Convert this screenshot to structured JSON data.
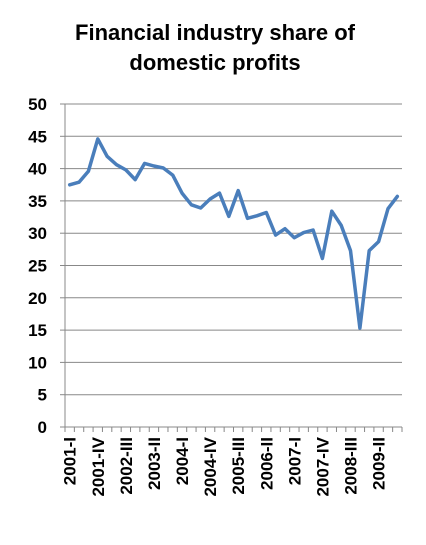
{
  "chart_data": {
    "type": "line",
    "title_line1": "Financial industry share of",
    "title_line2": "domestic profits",
    "xlabel": "",
    "ylabel": "",
    "ylim": [
      0,
      50
    ],
    "yticks": [
      0,
      5,
      10,
      15,
      20,
      25,
      30,
      35,
      40,
      45,
      50
    ],
    "grid": true,
    "legend": "none",
    "line_color": "#4a7ebb",
    "x_tick_labels": [
      {
        "index": 0,
        "label": "2001-I"
      },
      {
        "index": 3,
        "label": "2001-IV"
      },
      {
        "index": 6,
        "label": "2002-III"
      },
      {
        "index": 9,
        "label": "2003-II"
      },
      {
        "index": 12,
        "label": "2004-I"
      },
      {
        "index": 15,
        "label": "2004-IV"
      },
      {
        "index": 18,
        "label": "2005-III"
      },
      {
        "index": 21,
        "label": "2006-II"
      },
      {
        "index": 24,
        "label": "2007-I"
      },
      {
        "index": 27,
        "label": "2007-IV"
      },
      {
        "index": 30,
        "label": "2008-III"
      },
      {
        "index": 33,
        "label": "2009-II"
      }
    ],
    "series": [
      {
        "values": [
          37.5,
          37.9,
          39.6,
          44.6,
          41.9,
          40.6,
          39.8,
          38.3,
          40.8,
          40.4,
          40.1,
          39.0,
          36.2,
          34.4,
          33.9,
          35.3,
          36.2,
          32.6,
          36.6,
          32.3,
          32.7,
          33.2,
          29.7,
          30.7,
          29.3,
          30.1,
          30.5,
          26.1,
          33.4,
          31.2,
          27.3,
          15.3,
          27.3,
          28.7,
          33.8,
          35.7
        ]
      }
    ]
  }
}
